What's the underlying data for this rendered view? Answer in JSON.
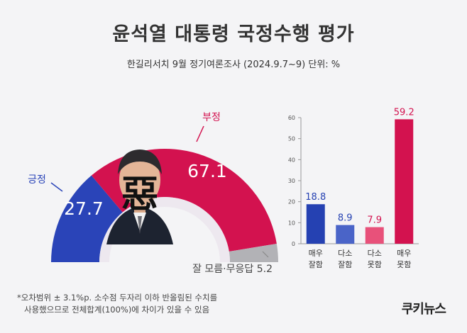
{
  "header": {
    "title": "윤석열 대통령 국정수행 평가",
    "subtitle": "한길리서치 9월 정기여론조사 (2024.9.7~9) 단위: %"
  },
  "footer": {
    "note_line1": "*오차범위 ± 3.1%p. 소수점 두자리 이하 반올림된 수치를",
    "note_line2": "사용했으므로 전체합계(100%)에 차이가 있을 수 있음",
    "logo": "쿠키뉴스"
  },
  "photo": {
    "overlay_text": "惡"
  },
  "colors": {
    "positive": "#2a44b8",
    "negative": "#d3124f",
    "neutral": "#b2b2b6",
    "bar_very_good": "#2541b2",
    "bar_somewhat_good": "#4a64c8",
    "bar_somewhat_bad": "#e8517a",
    "bar_very_bad": "#d3124f"
  },
  "chart_data": [
    {
      "type": "pie",
      "style": "semicircle-donut",
      "slices": [
        {
          "label": "긍정",
          "value": 27.7,
          "color": "#2a44b8"
        },
        {
          "label": "부정",
          "value": 67.1,
          "color": "#d3124f"
        },
        {
          "label": "잘 모름·무응답",
          "value": 5.2,
          "color": "#b2b2b6"
        }
      ],
      "value_labels": [
        "27.7",
        "67.1",
        "5.2"
      ]
    },
    {
      "type": "bar",
      "categories": [
        [
          "매우",
          "잘함"
        ],
        [
          "다소",
          "잘함"
        ],
        [
          "다소",
          "못함"
        ],
        [
          "매우",
          "못함"
        ]
      ],
      "values": [
        18.8,
        8.9,
        7.9,
        59.2
      ],
      "value_labels": [
        "18.8",
        "8.9",
        "7.9",
        "59.2"
      ],
      "colors": [
        "#2541b2",
        "#4a64c8",
        "#e8517a",
        "#d3124f"
      ],
      "label_colors": [
        "#2541b2",
        "#2541b2",
        "#d3124f",
        "#d3124f"
      ],
      "ylim": [
        0,
        60
      ],
      "yticks": [
        "0",
        "10",
        "20",
        "30",
        "40",
        "50",
        "60"
      ],
      "grid": false
    }
  ]
}
